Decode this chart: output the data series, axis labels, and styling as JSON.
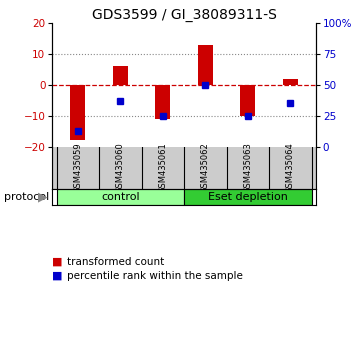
{
  "title": "GDS3599 / GI_38089311-S",
  "samples": [
    "GSM435059",
    "GSM435060",
    "GSM435061",
    "GSM435062",
    "GSM435063",
    "GSM435064"
  ],
  "transformed_count": [
    -18.0,
    6.0,
    -11.0,
    13.0,
    -10.0,
    2.0
  ],
  "percentile_rank": [
    13,
    37,
    25,
    50,
    25,
    35
  ],
  "ylim_left": [
    -20,
    20
  ],
  "ylim_right": [
    0,
    100
  ],
  "yticks_left": [
    -20,
    -10,
    0,
    10,
    20
  ],
  "yticks_right": [
    0,
    25,
    50,
    75,
    100
  ],
  "bar_color": "#cc0000",
  "dot_color": "#0000cc",
  "groups": [
    {
      "label": "control",
      "indices": [
        0,
        1,
        2
      ],
      "color": "#99ff99"
    },
    {
      "label": "Eset depletion",
      "indices": [
        3,
        4,
        5
      ],
      "color": "#33cc33"
    }
  ],
  "protocol_label": "protocol",
  "legend_bar_label": "transformed count",
  "legend_dot_label": "percentile rank within the sample",
  "grid_color": "#888888",
  "zero_line_color": "#cc0000",
  "bg_color": "#ffffff",
  "plot_bg_color": "#ffffff",
  "sample_box_color": "#cccccc",
  "title_fontsize": 10,
  "tick_fontsize": 7.5,
  "legend_fontsize": 7.5,
  "bar_width": 0.35
}
